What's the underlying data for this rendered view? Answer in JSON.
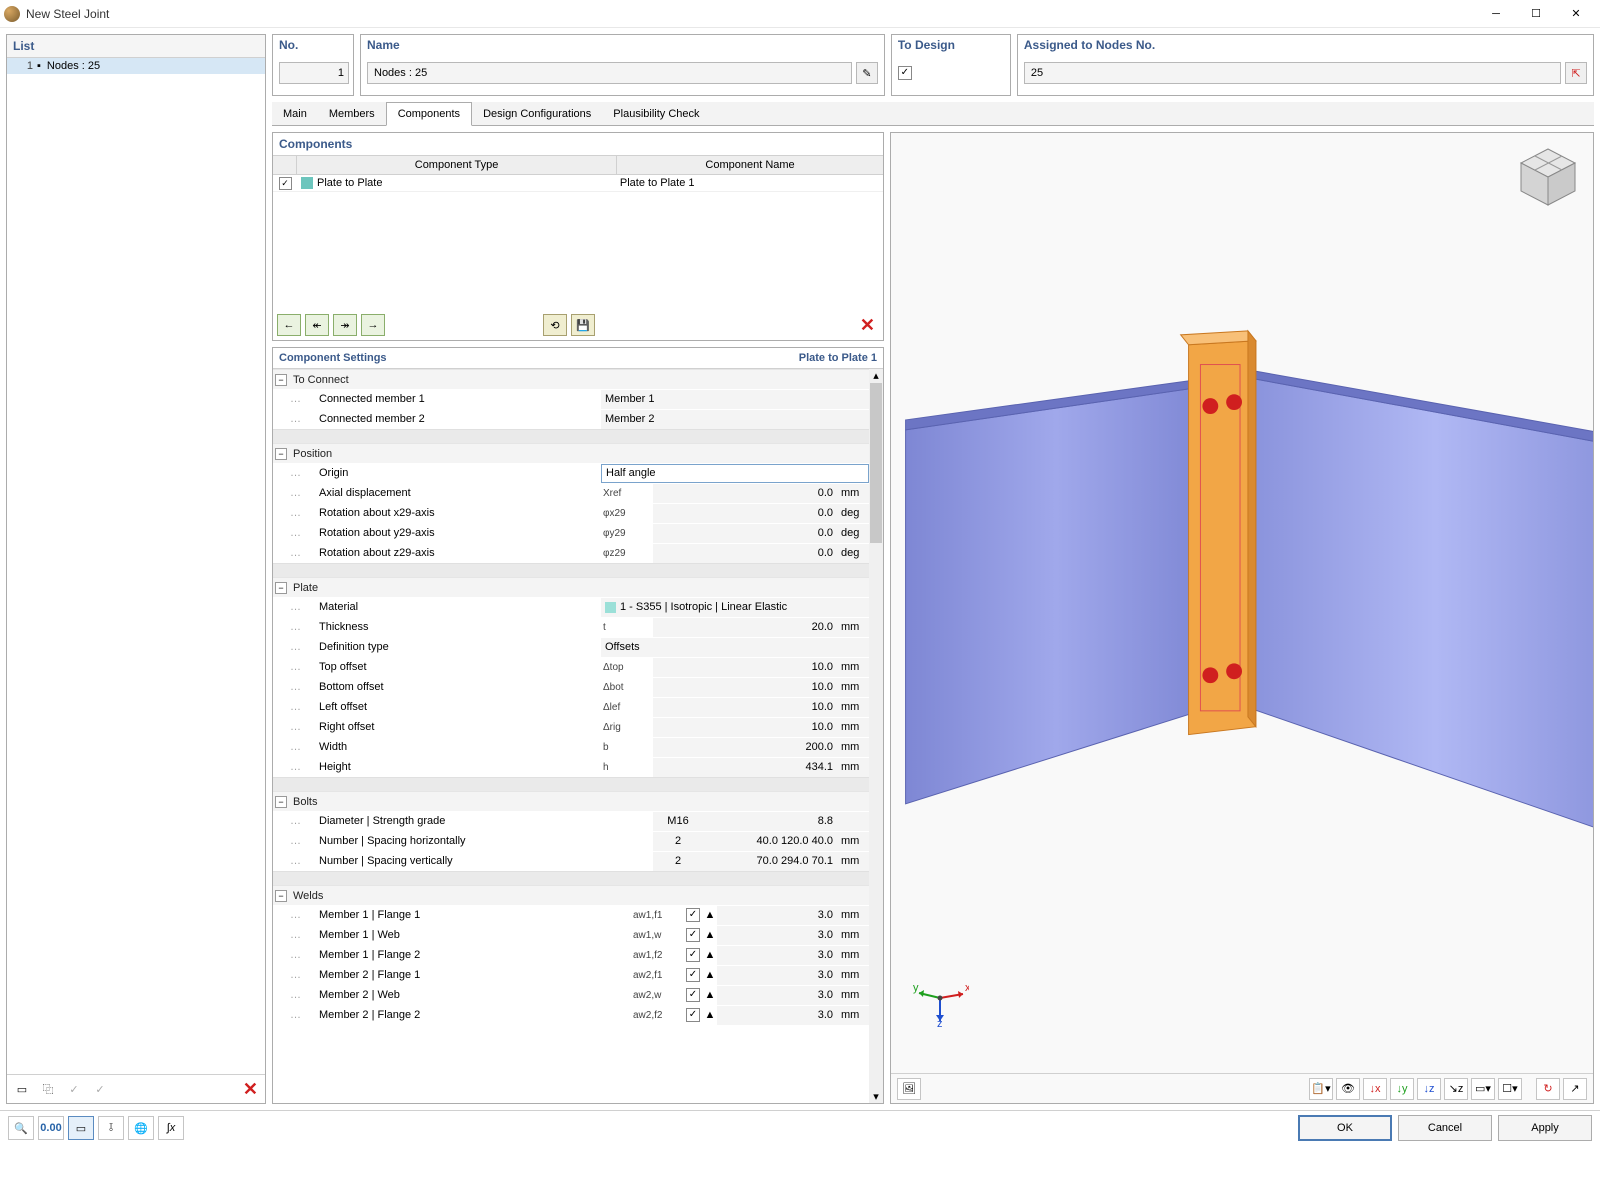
{
  "window": {
    "title": "New Steel Joint"
  },
  "list": {
    "header": "List",
    "items": [
      {
        "num": "1",
        "label": "Nodes : 25"
      }
    ]
  },
  "header_groups": {
    "no": {
      "label": "No.",
      "value": "1"
    },
    "name": {
      "label": "Name",
      "value": "Nodes : 25"
    },
    "design": {
      "label": "To Design",
      "checked": true
    },
    "assigned": {
      "label": "Assigned to Nodes No.",
      "value": "25"
    }
  },
  "tabs": [
    "Main",
    "Members",
    "Components",
    "Design Configurations",
    "Plausibility Check"
  ],
  "components": {
    "title": "Components",
    "headers": [
      "Component Type",
      "Component Name"
    ],
    "rows": [
      {
        "checked": true,
        "type": "Plate to Plate",
        "name": "Plate to Plate 1"
      }
    ]
  },
  "settings": {
    "title": "Component Settings",
    "right": "Plate to Plate 1",
    "groups": [
      {
        "name": "To Connect",
        "rows": [
          {
            "label": "Connected member 1",
            "value_text": "Member 1"
          },
          {
            "label": "Connected member 2",
            "value_text": "Member 2"
          }
        ]
      },
      {
        "name": "Position",
        "rows": [
          {
            "label": "Origin",
            "select_value": "Half angle"
          },
          {
            "label": "Axial displacement",
            "sym": "Xref",
            "value": "0.0",
            "unit": "mm"
          },
          {
            "label": "Rotation about x29-axis",
            "sym": "φx29",
            "value": "0.0",
            "unit": "deg"
          },
          {
            "label": "Rotation about y29-axis",
            "sym": "φy29",
            "value": "0.0",
            "unit": "deg"
          },
          {
            "label": "Rotation about z29-axis",
            "sym": "φz29",
            "value": "0.0",
            "unit": "deg"
          }
        ]
      },
      {
        "name": "Plate",
        "rows": [
          {
            "label": "Material",
            "value_text": "1 - S355 | Isotropic | Linear Elastic",
            "swatch": "#9be0d8"
          },
          {
            "label": "Thickness",
            "sym": "t",
            "value": "20.0",
            "unit": "mm"
          },
          {
            "label": "Definition type",
            "value_text": "Offsets"
          },
          {
            "label": "Top offset",
            "sym": "Δtop",
            "value": "10.0",
            "unit": "mm"
          },
          {
            "label": "Bottom offset",
            "sym": "Δbot",
            "value": "10.0",
            "unit": "mm"
          },
          {
            "label": "Left offset",
            "sym": "Δlef",
            "value": "10.0",
            "unit": "mm"
          },
          {
            "label": "Right offset",
            "sym": "Δrig",
            "value": "10.0",
            "unit": "mm"
          },
          {
            "label": "Width",
            "sym": "b",
            "value": "200.0",
            "unit": "mm"
          },
          {
            "label": "Height",
            "sym": "h",
            "value": "434.1",
            "unit": "mm"
          }
        ]
      },
      {
        "name": "Bolts",
        "rows": [
          {
            "label": "Diameter | Strength grade",
            "value_pair": [
              "M16",
              "8.8"
            ]
          },
          {
            "label": "Number | Spacing horizontally",
            "value_pair": [
              "2",
              "40.0 120.0 40.0"
            ],
            "unit": "mm"
          },
          {
            "label": "Number | Spacing vertically",
            "value_pair": [
              "2",
              "70.0 294.0 70.1"
            ],
            "unit": "mm"
          }
        ]
      },
      {
        "name": "Welds",
        "rows": [
          {
            "label": "Member 1 | Flange 1",
            "sym": "aw1,f1",
            "weld": true,
            "value": "3.0",
            "unit": "mm"
          },
          {
            "label": "Member 1 | Web",
            "sym": "aw1,w",
            "weld": true,
            "value": "3.0",
            "unit": "mm"
          },
          {
            "label": "Member 1 | Flange 2",
            "sym": "aw1,f2",
            "weld": true,
            "value": "3.0",
            "unit": "mm"
          },
          {
            "label": "Member 2 | Flange 1",
            "sym": "aw2,f1",
            "weld": true,
            "value": "3.0",
            "unit": "mm"
          },
          {
            "label": "Member 2 | Web",
            "sym": "aw2,w",
            "weld": true,
            "value": "3.0",
            "unit": "mm"
          },
          {
            "label": "Member 2 | Flange 2",
            "sym": "aw2,f2",
            "weld": true,
            "value": "3.0",
            "unit": "mm"
          }
        ]
      }
    ]
  },
  "buttons": {
    "ok": "OK",
    "cancel": "Cancel",
    "apply": "Apply"
  },
  "axis_triad": {
    "x_color": "#d01f1f",
    "y_color": "#1fa01f",
    "z_color": "#1f4fd0"
  },
  "viewport": {
    "beam_fill": "#8a93dc",
    "beam_edge": "#5a63b0",
    "plate_fill": "#f2a646",
    "plate_edge": "#c97820",
    "bolt_color": "#d01f1f"
  }
}
